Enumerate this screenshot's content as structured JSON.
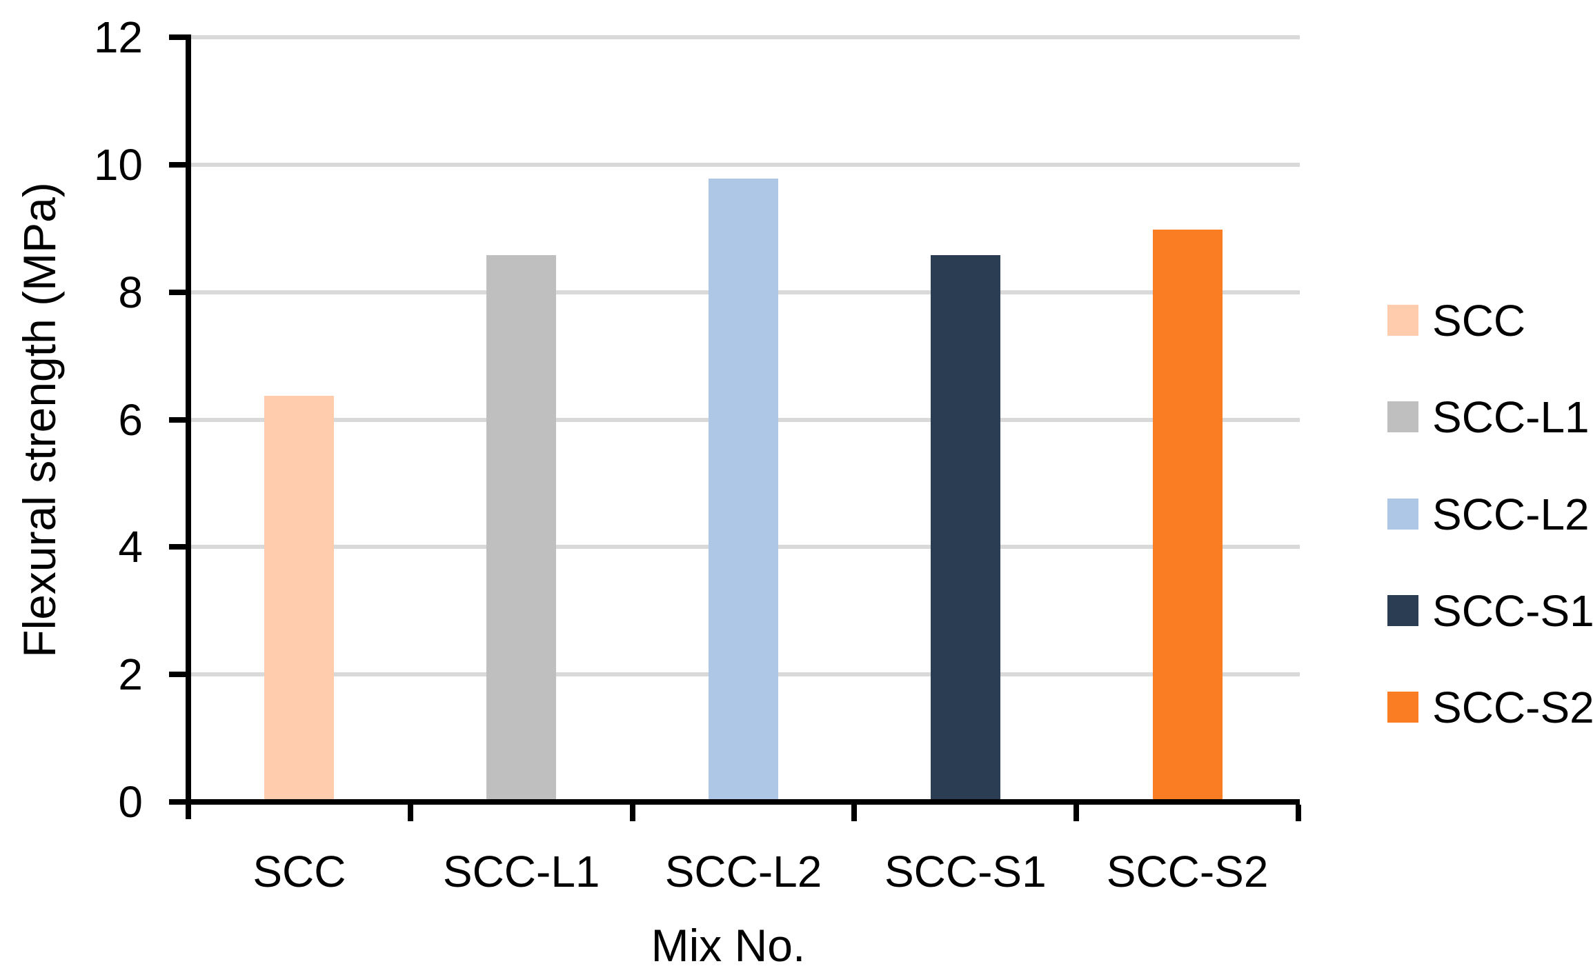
{
  "chart_data": {
    "type": "bar",
    "title": "",
    "categories": [
      "SCC",
      "SCC-L1",
      "SCC-L2",
      "SCC-S1",
      "SCC-S2"
    ],
    "values": [
      6.4,
      8.6,
      9.8,
      8.6,
      9.0
    ],
    "series_colors": [
      "#FFCCAE",
      "#BFBFBF",
      "#AEC7E6",
      "#2A3D52",
      "#FB7D23"
    ],
    "xlabel": "Mix No.",
    "ylabel": "Flexural strength (MPa)",
    "ylim": [
      0,
      12
    ],
    "yticks": [
      0,
      2,
      4,
      6,
      8,
      10,
      12
    ],
    "grid": true,
    "legend_position": "right",
    "legend": [
      "SCC",
      "SCC-L1",
      "SCC-L2",
      "SCC-S1",
      "SCC-S2"
    ]
  },
  "colors": {
    "background": "#FFFFFF",
    "gridline": "#D9D9D9",
    "axis": "#000000",
    "text": "#000000"
  }
}
